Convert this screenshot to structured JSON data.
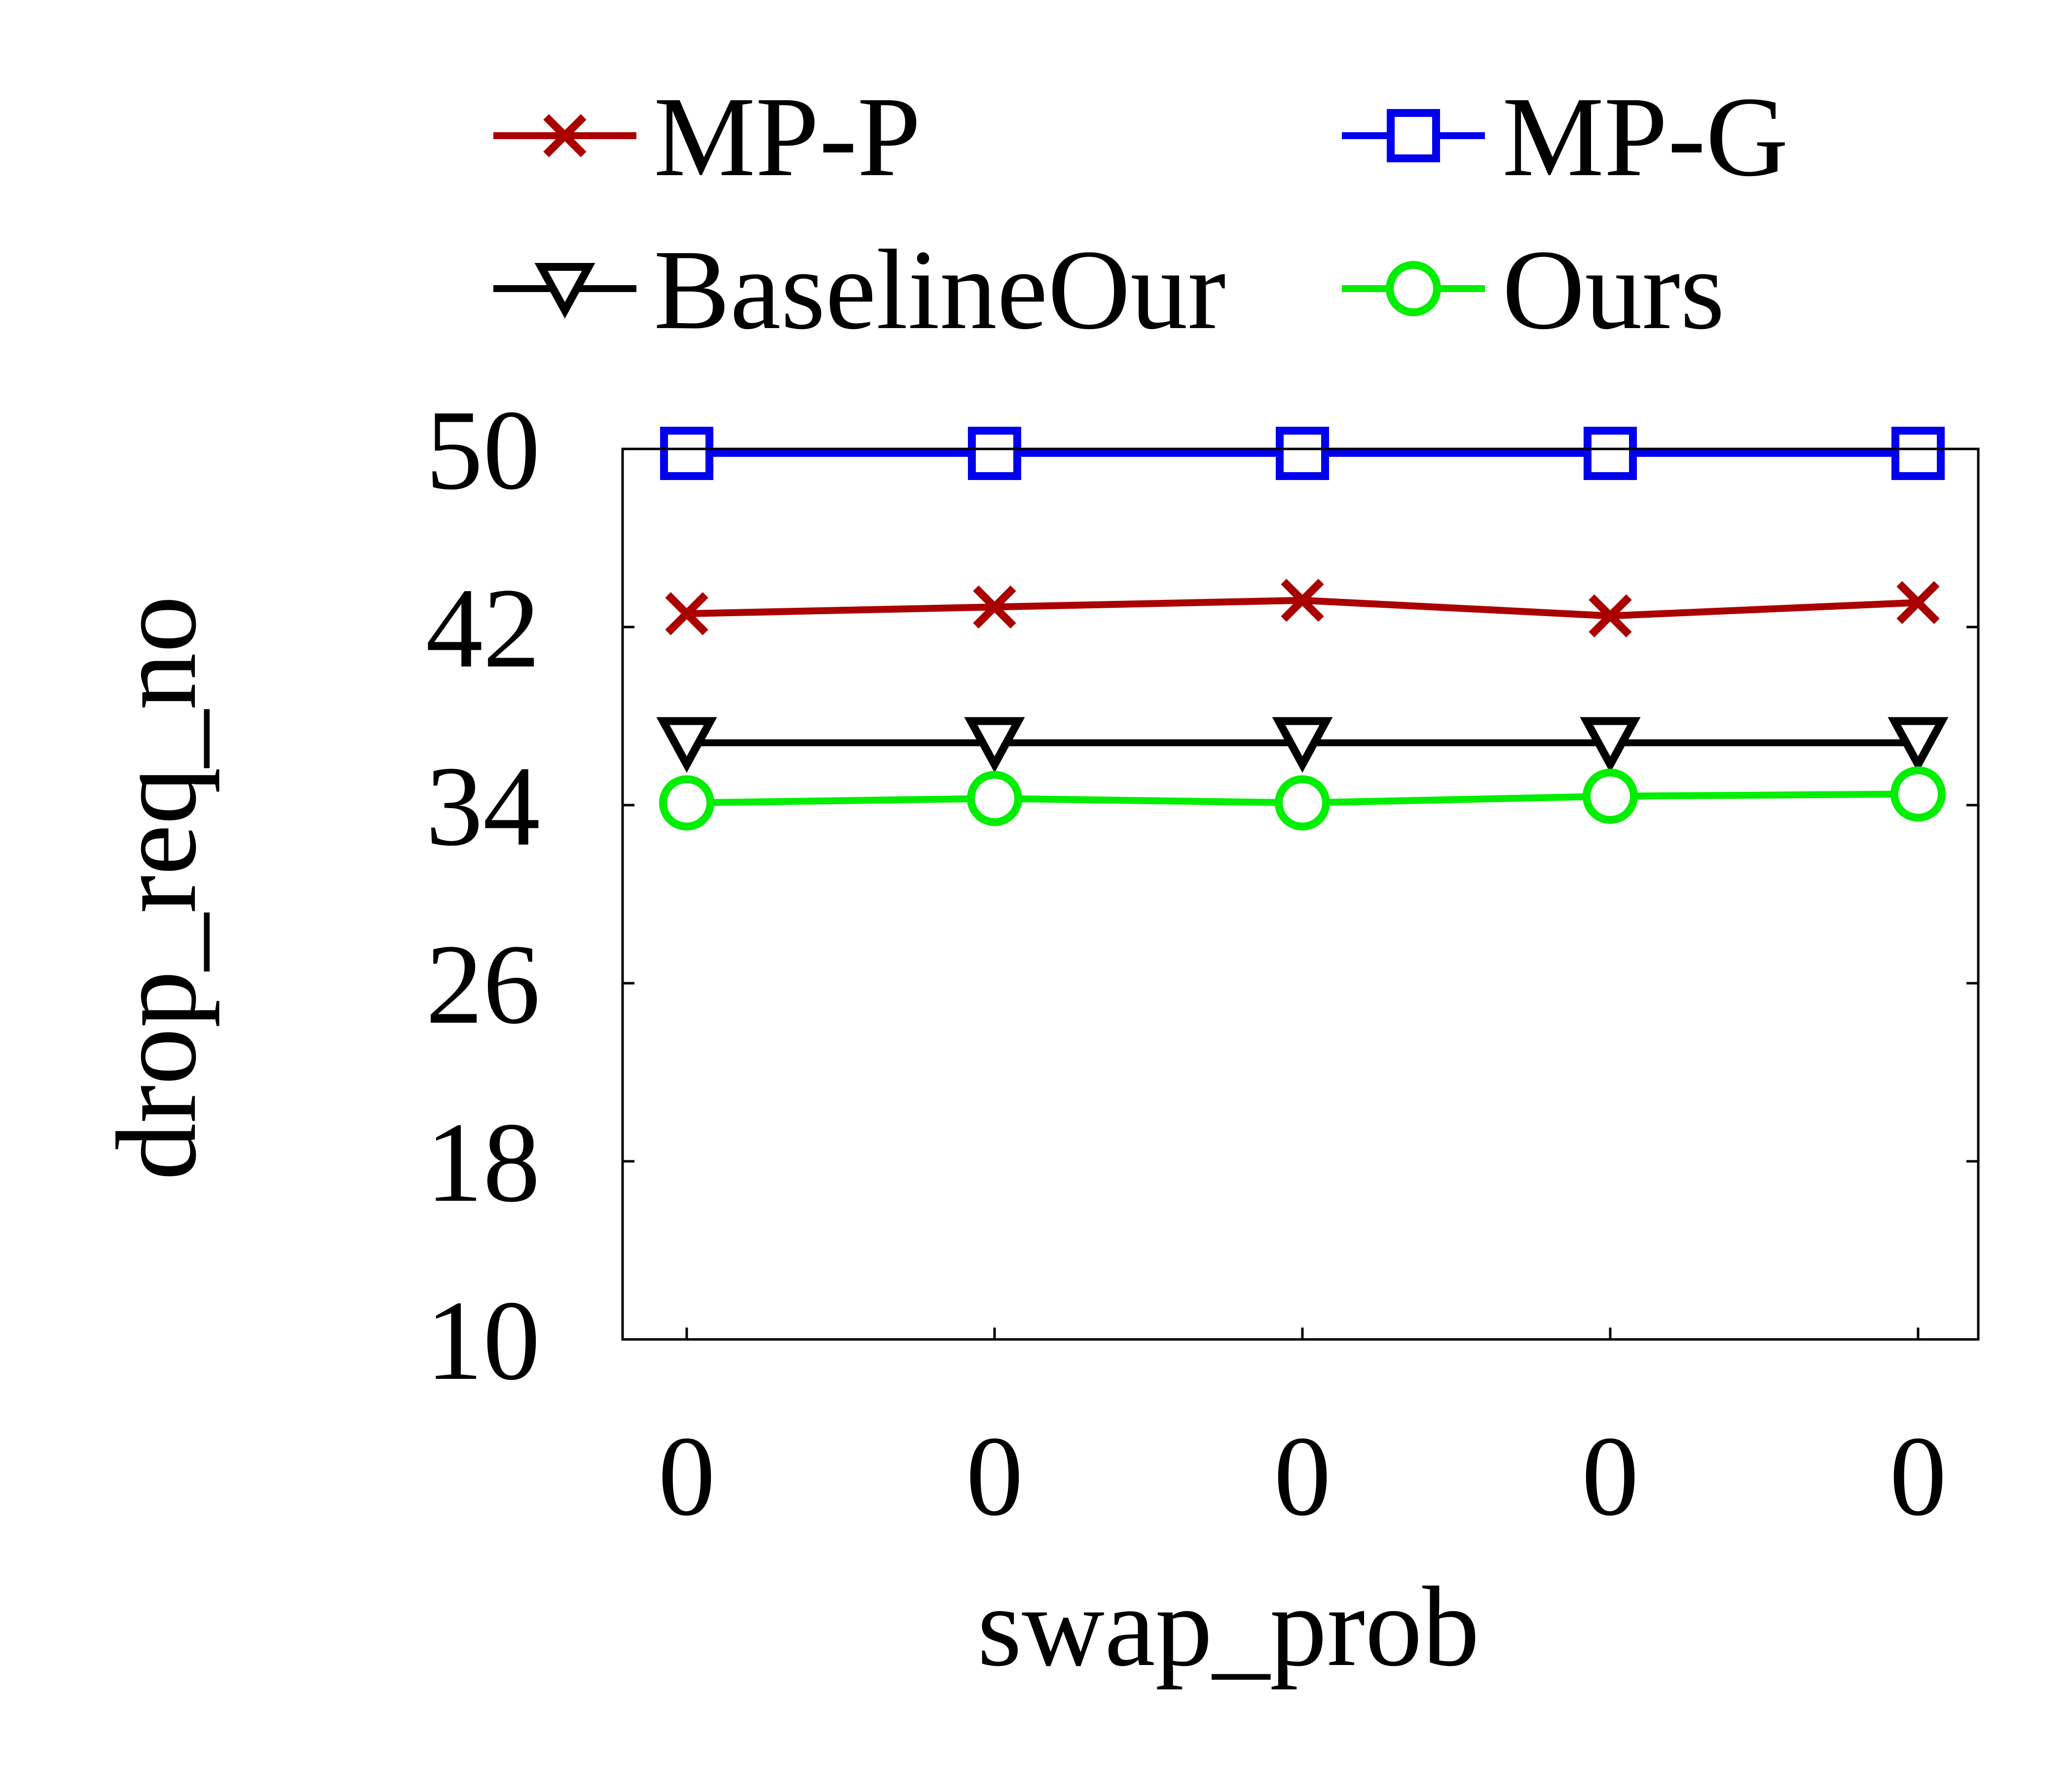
{
  "chart_data": {
    "type": "line",
    "xlabel": "swap_prob",
    "ylabel": "drop_req_no",
    "categories": [
      "0",
      "0",
      "0",
      "0",
      "0"
    ],
    "ylim": [
      10,
      50
    ],
    "yticks": [
      "10",
      "18",
      "26",
      "34",
      "42",
      "50"
    ],
    "legend_position": "top",
    "series": [
      {
        "name": "MP-P",
        "color": "#aa0000",
        "marker": "x",
        "values": [
          42.6,
          42.9,
          43.2,
          42.5,
          43.1
        ]
      },
      {
        "name": "MP-G",
        "color": "#0000ee",
        "marker": "square",
        "values": [
          49.8,
          49.8,
          49.8,
          49.8,
          49.8
        ]
      },
      {
        "name": "BaselineOur",
        "color": "#000000",
        "marker": "triangle-down",
        "values": [
          36.8,
          36.8,
          36.8,
          36.8,
          36.8
        ]
      },
      {
        "name": "Ours",
        "color": "#00ee00",
        "marker": "circle",
        "values": [
          34.1,
          34.3,
          34.1,
          34.4,
          34.5
        ]
      }
    ]
  }
}
